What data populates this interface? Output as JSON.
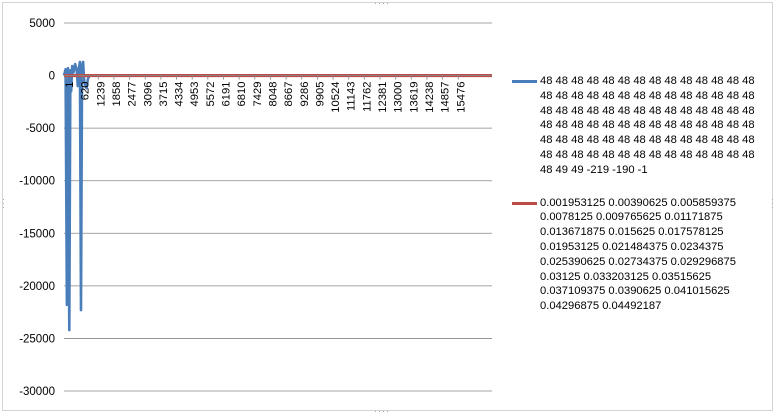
{
  "colors": {
    "series1": "#4a7ebb",
    "series2": "#be4b48",
    "gridline": "#868686",
    "axis": "#868686",
    "frame_border": "#d4d4d4"
  },
  "chart_data": {
    "type": "line",
    "title": "",
    "xlabel": "",
    "ylabel": "",
    "ylim": [
      -30000,
      5000
    ],
    "y_ticks": [
      "5000",
      "0",
      "-5000",
      "-10000",
      "-15000",
      "-20000",
      "-25000",
      "-30000"
    ],
    "x_ticks": [
      "1",
      "620",
      "1239",
      "1858",
      "2477",
      "3096",
      "3715",
      "4334",
      "4953",
      "5572",
      "6191",
      "6810",
      "7429",
      "8048",
      "8667",
      "9286",
      "9905",
      "10524",
      "11143",
      "11762",
      "12381",
      "13000",
      "13619",
      "14238",
      "14857",
      "15476"
    ],
    "x_range": [
      1,
      16095
    ],
    "grid": true,
    "legend_position": "right",
    "series": [
      {
        "name": "48 48 48 48 48 48 48 48 48 48 48 48 48 48 48 48 48 48 48 48 48 48 48 48 48 48 48 48 48 48 48 48 48 48 48 48 48 48 48 48 48 48 48 48 48 48 48 48 48 48 48 48 48 48 48 48 48 48 48 48 48 48 48 48 48 48 48 48 48 48 48 48 48 48 48 48 48 48 48 48 48 48 48 48 48 49 49 -219 -190 -1",
        "color": "#4a7ebb",
        "points": [
          [
            1,
            0
          ],
          [
            60,
            600
          ],
          [
            110,
            -21800
          ],
          [
            150,
            700
          ],
          [
            200,
            -24200
          ],
          [
            240,
            500
          ],
          [
            270,
            -1500
          ],
          [
            310,
            900
          ],
          [
            360,
            300
          ],
          [
            420,
            1100
          ],
          [
            480,
            500
          ],
          [
            520,
            -1000
          ],
          [
            560,
            700
          ],
          [
            600,
            1300
          ],
          [
            640,
            -22300
          ],
          [
            680,
            900
          ],
          [
            720,
            1300
          ],
          [
            760,
            -500
          ],
          [
            800,
            -900
          ],
          [
            850,
            -1200
          ],
          [
            900,
            -300
          ],
          [
            960,
            0
          ],
          [
            16095,
            0
          ]
        ]
      },
      {
        "name": "0.001953125 0.00390625 0.005859375 0.0078125 0.009765625 0.01171875 0.013671875 0.015625 0.017578125 0.01953125 0.021484375 0.0234375 0.025390625 0.02734375 0.029296875 0.03125 0.033203125 0.03515625 0.037109375 0.0390625 0.041015625 0.04296875 0.04492187",
        "color": "#be4b48",
        "points": [
          [
            1,
            0
          ],
          [
            16095,
            0
          ]
        ]
      }
    ]
  }
}
